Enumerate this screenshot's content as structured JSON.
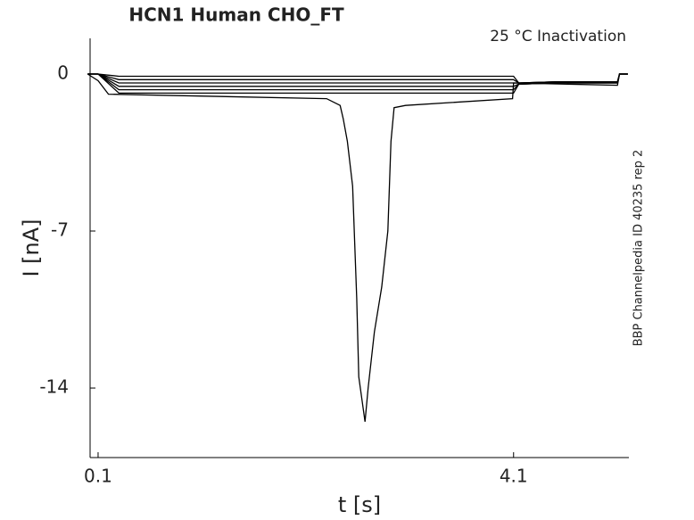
{
  "chart_data": {
    "type": "line",
    "title": "HCN1  Human  CHO_FT",
    "annotation": "25 °C  Inactivation",
    "side_note": "BBP Channelpedia ID 40235 rep 2",
    "x_label": "t [s]",
    "y_label": "I [nA]",
    "xlim": [
      0.023,
      5.21
    ],
    "ylim": [
      -17.1,
      1.59
    ],
    "xticks": [
      0.1,
      4.1
    ],
    "yticks": [
      0,
      -7,
      -14
    ],
    "series": [
      {
        "color": "#000000",
        "x": [
          0.0,
          0.1,
          0.3,
          4.1,
          4.15,
          4.5,
          5.1,
          5.12,
          5.2
        ],
        "values": [
          0,
          0,
          -0.1,
          -0.1,
          -0.4,
          -0.35,
          -0.35,
          0,
          0
        ]
      },
      {
        "color": "#000000",
        "x": [
          0.0,
          0.1,
          0.3,
          4.1,
          4.15,
          4.5,
          5.1,
          5.12,
          5.2
        ],
        "values": [
          0,
          0,
          -0.25,
          -0.25,
          -0.4,
          -0.35,
          -0.35,
          0,
          0
        ]
      },
      {
        "color": "#000000",
        "x": [
          0.0,
          0.1,
          0.3,
          4.1,
          4.15,
          4.5,
          5.1,
          5.12,
          5.2
        ],
        "values": [
          0,
          0,
          -0.4,
          -0.4,
          -0.4,
          -0.35,
          -0.35,
          0,
          0
        ]
      },
      {
        "color": "#000000",
        "x": [
          0.0,
          0.1,
          0.3,
          4.1,
          4.15,
          4.5,
          5.1,
          5.12,
          5.2
        ],
        "values": [
          0,
          0,
          -0.55,
          -0.55,
          -0.45,
          -0.4,
          -0.4,
          0,
          0
        ]
      },
      {
        "color": "#000000",
        "x": [
          0.0,
          0.1,
          0.3,
          4.1,
          4.15,
          4.5,
          5.1,
          5.12,
          5.2
        ],
        "values": [
          0,
          0,
          -0.7,
          -0.7,
          -0.45,
          -0.4,
          -0.4,
          0,
          0
        ]
      },
      {
        "color": "#000000",
        "x": [
          0.0,
          0.1,
          0.3,
          4.1,
          4.15,
          4.5,
          5.1,
          5.12,
          5.2
        ],
        "values": [
          0,
          0,
          -0.85,
          -0.85,
          -0.45,
          -0.4,
          -0.4,
          0,
          0
        ]
      },
      {
        "color": "#000000",
        "x": [
          0.0,
          0.1,
          0.2,
          2.3,
          2.43,
          2.46,
          2.5,
          2.55,
          2.59,
          2.61,
          2.67,
          2.7,
          2.76,
          2.83,
          2.89,
          2.92,
          2.95,
          3.06,
          4.09,
          4.1,
          5.1,
          5.12,
          5.2
        ],
        "values": [
          0,
          -0.3,
          -0.9,
          -1.1,
          -1.4,
          -2.0,
          -3.0,
          -5.0,
          -10,
          -13.5,
          -15.5,
          -14,
          -11.5,
          -9.5,
          -7,
          -3,
          -1.5,
          -1.4,
          -1.1,
          -0.4,
          -0.5,
          0,
          0
        ]
      }
    ]
  }
}
